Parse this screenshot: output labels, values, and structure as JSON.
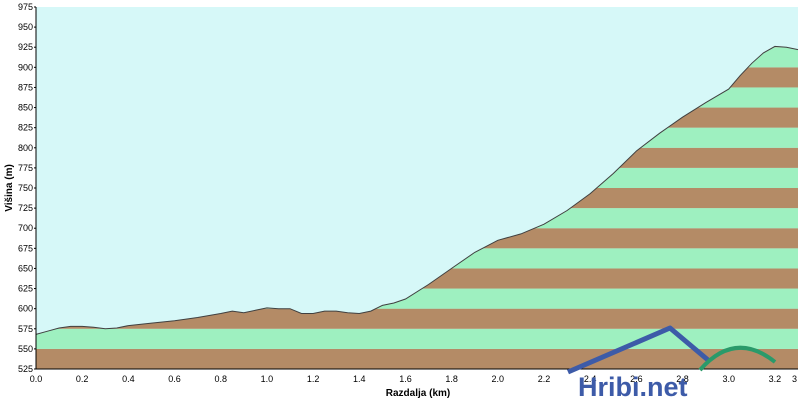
{
  "chart_data": {
    "type": "area",
    "title": "",
    "xlabel": "Razdalja  (km)",
    "ylabel": "Višina (m)",
    "xlim": [
      0,
      3.3
    ],
    "ylim": [
      525,
      975
    ],
    "x_ticks": [
      "0.0",
      "0.2",
      "0.4",
      "0.6",
      "0.8",
      "1.0",
      "1.2",
      "1.4",
      "1.6",
      "1.8",
      "2.0",
      "2.2",
      "2.4",
      "2.6",
      "2.8",
      "3.0",
      "3.2",
      "3"
    ],
    "y_ticks": [
      525,
      550,
      575,
      600,
      625,
      650,
      675,
      700,
      725,
      750,
      775,
      800,
      825,
      850,
      875,
      900,
      925,
      950,
      975
    ],
    "grid": false,
    "legend": "none",
    "colors": {
      "sky": "#d6f8f8",
      "band_light": "#9ef0c0",
      "band_dark": "#b48b66",
      "outline": "#404040"
    },
    "series": [
      {
        "x": [
          0.0,
          0.05,
          0.1,
          0.15,
          0.2,
          0.25,
          0.3,
          0.35,
          0.4,
          0.5,
          0.6,
          0.7,
          0.8,
          0.85,
          0.9,
          0.95,
          1.0,
          1.05,
          1.1,
          1.15,
          1.2,
          1.25,
          1.3,
          1.35,
          1.4,
          1.45,
          1.5,
          1.55,
          1.6,
          1.7,
          1.8,
          1.9,
          2.0,
          2.1,
          2.2,
          2.3,
          2.4,
          2.5,
          2.6,
          2.7,
          2.8,
          2.9,
          3.0,
          3.05,
          3.1,
          3.15,
          3.2,
          3.25,
          3.3
        ],
        "y": [
          568,
          572,
          576,
          578,
          578,
          577,
          575,
          576,
          579,
          582,
          585,
          589,
          594,
          597,
          595,
          598,
          601,
          600,
          600,
          594,
          594,
          597,
          597,
          595,
          594,
          597,
          604,
          607,
          612,
          630,
          650,
          670,
          685,
          693,
          705,
          722,
          743,
          768,
          796,
          818,
          838,
          856,
          873,
          890,
          905,
          918,
          926,
          925,
          922
        ]
      }
    ]
  },
  "logo": {
    "text": "Hribi.net",
    "colors": {
      "text_blue": "#3d5ba8",
      "text_green": "#2a9a6a"
    }
  }
}
